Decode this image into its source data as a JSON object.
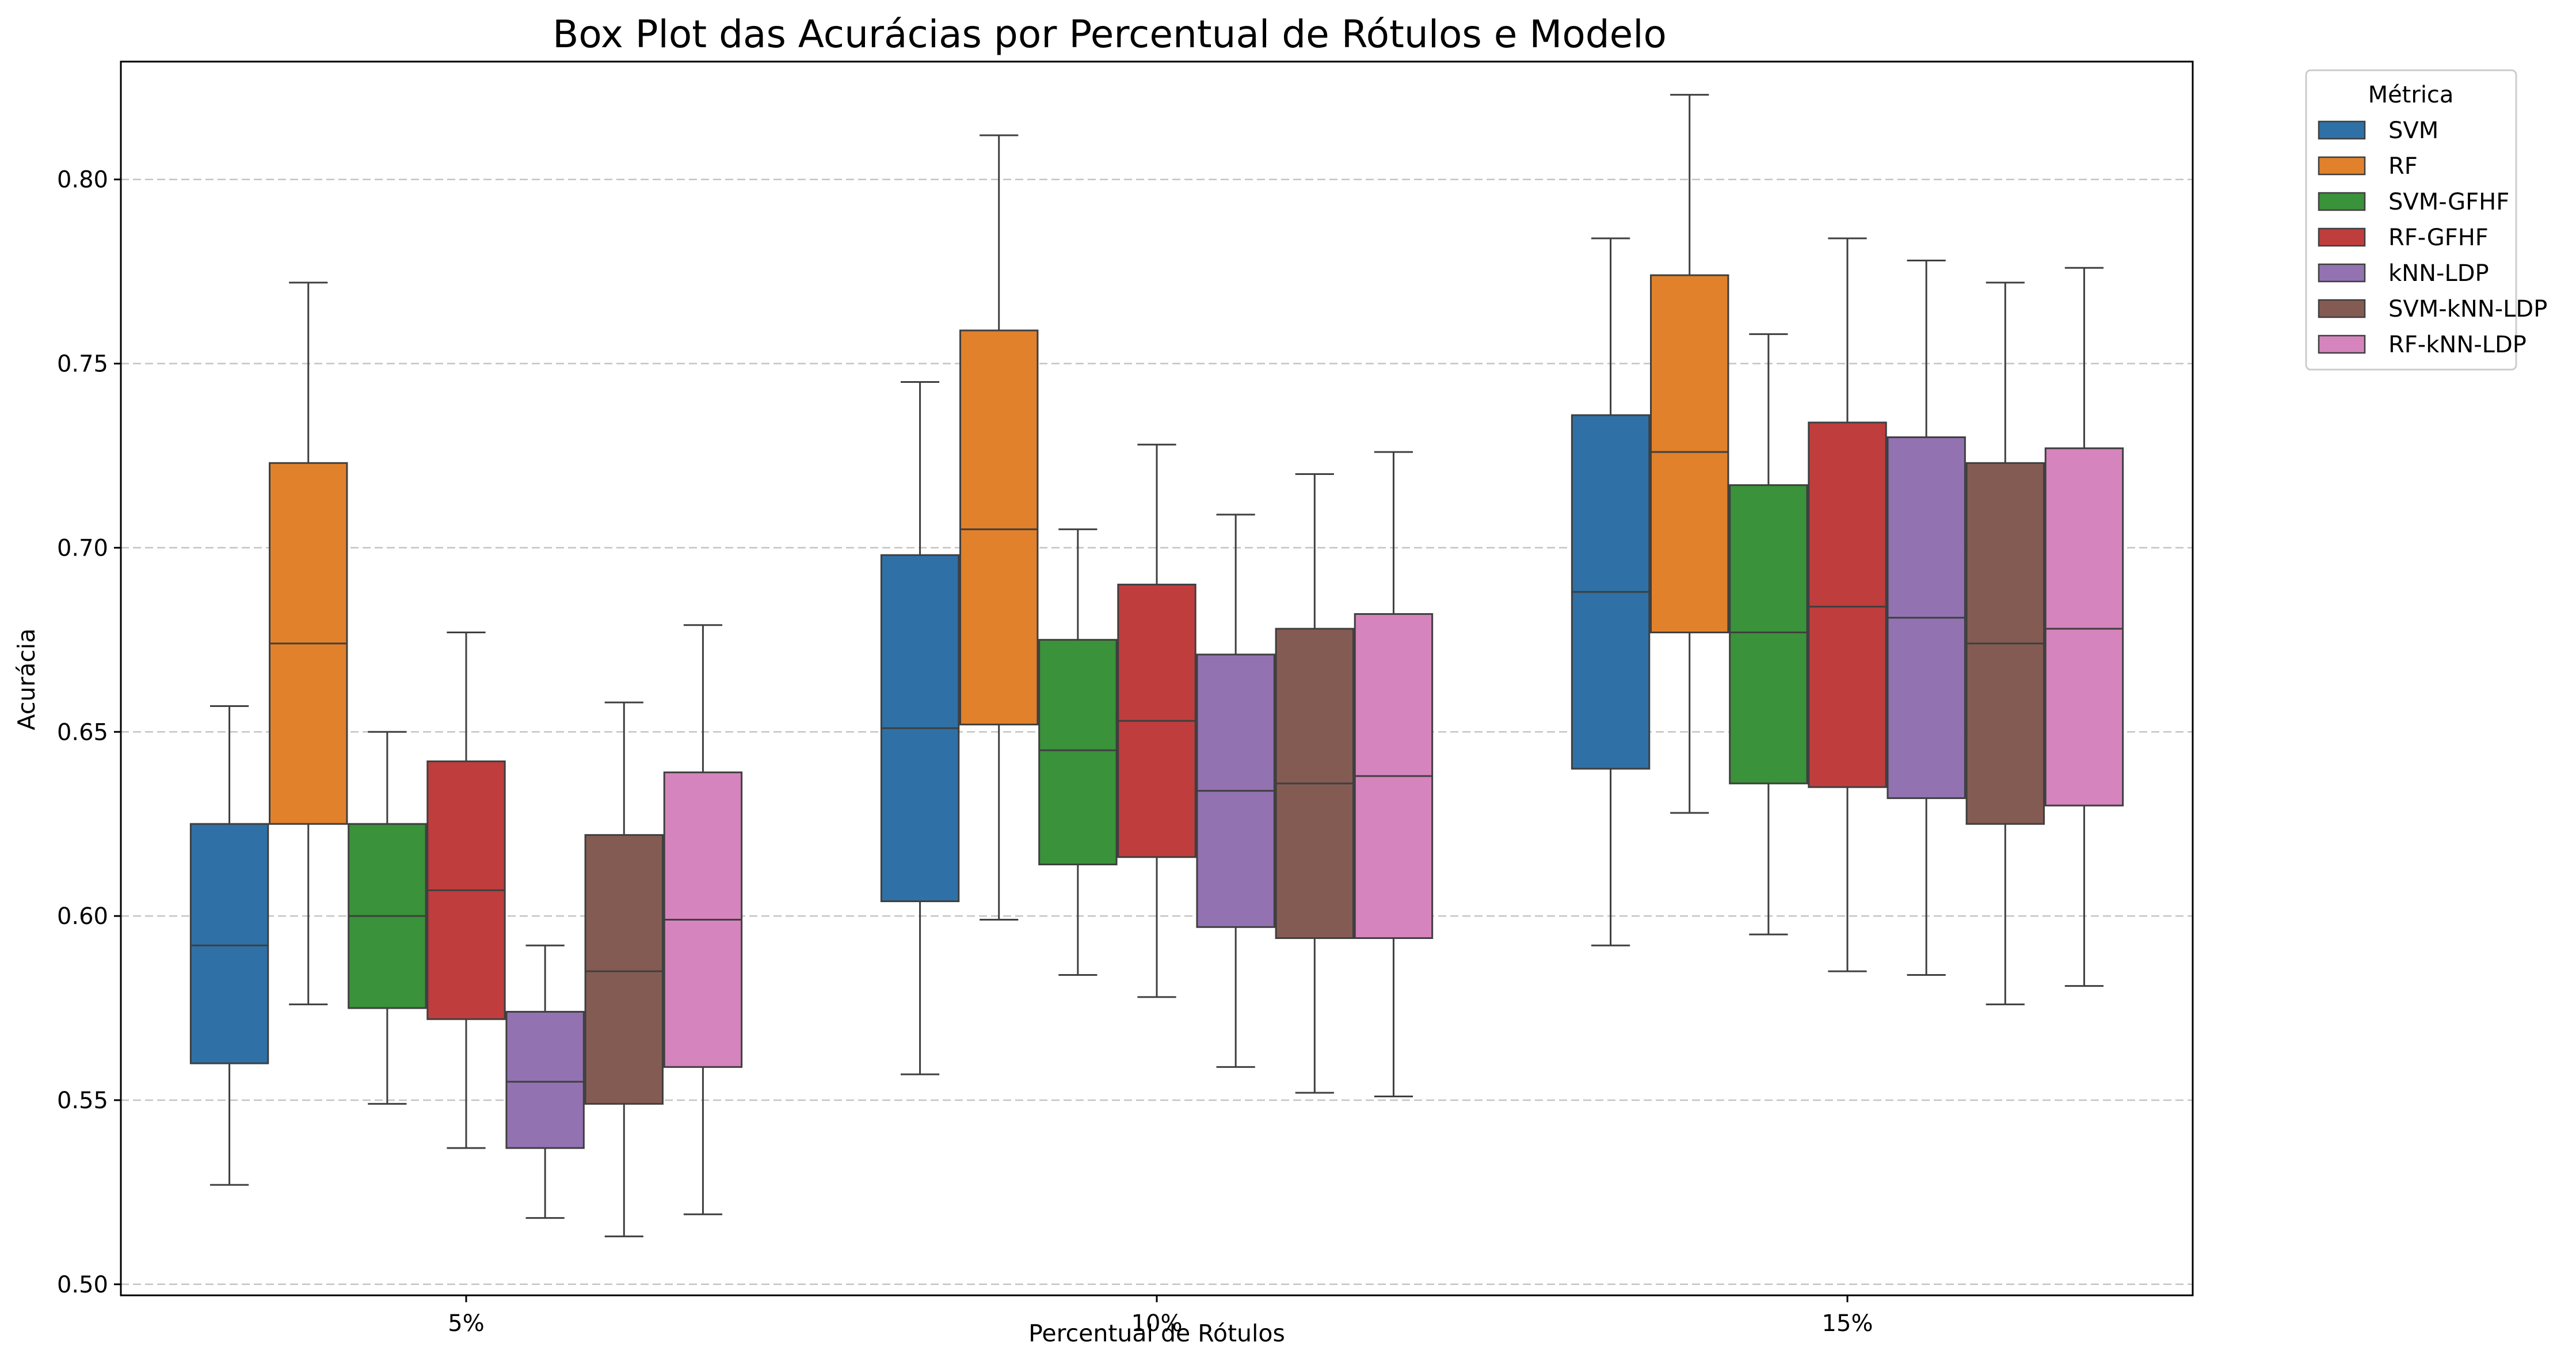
{
  "chart_data": {
    "type": "box",
    "title": "Box Plot das Acurácias por Percentual de Rótulos e Modelo",
    "xlabel": "Percentual de Rótulos",
    "ylabel": "Acurácia",
    "ylim": [
      0.497,
      0.832
    ],
    "yticks": [
      "0.50",
      "0.55",
      "0.60",
      "0.65",
      "0.70",
      "0.75",
      "0.80"
    ],
    "grid": "y, dashed",
    "categories": [
      "5%",
      "10%",
      "15%"
    ],
    "legend": {
      "title": "Métrica",
      "placement": "outside top-right"
    },
    "series": [
      {
        "name": "SVM",
        "color": "#2f71a6",
        "boxes": [
          {
            "min": 0.527,
            "q1": 0.56,
            "median": 0.592,
            "q3": 0.625,
            "max": 0.657
          },
          {
            "min": 0.557,
            "q1": 0.604,
            "median": 0.651,
            "q3": 0.698,
            "max": 0.745
          },
          {
            "min": 0.592,
            "q1": 0.64,
            "median": 0.688,
            "q3": 0.736,
            "max": 0.784
          }
        ]
      },
      {
        "name": "RF",
        "color": "#e1812c",
        "boxes": [
          {
            "min": 0.576,
            "q1": 0.625,
            "median": 0.674,
            "q3": 0.723,
            "max": 0.772
          },
          {
            "min": 0.599,
            "q1": 0.652,
            "median": 0.705,
            "q3": 0.759,
            "max": 0.812
          },
          {
            "min": 0.628,
            "q1": 0.677,
            "median": 0.726,
            "q3": 0.774,
            "max": 0.823
          }
        ]
      },
      {
        "name": "SVM-GFHF",
        "color": "#3a923a",
        "boxes": [
          {
            "min": 0.549,
            "q1": 0.575,
            "median": 0.6,
            "q3": 0.625,
            "max": 0.65
          },
          {
            "min": 0.584,
            "q1": 0.614,
            "median": 0.645,
            "q3": 0.675,
            "max": 0.705
          },
          {
            "min": 0.595,
            "q1": 0.636,
            "median": 0.677,
            "q3": 0.717,
            "max": 0.758
          }
        ]
      },
      {
        "name": "RF-GFHF",
        "color": "#c03d3e",
        "boxes": [
          {
            "min": 0.537,
            "q1": 0.572,
            "median": 0.607,
            "q3": 0.642,
            "max": 0.677
          },
          {
            "min": 0.578,
            "q1": 0.616,
            "median": 0.653,
            "q3": 0.69,
            "max": 0.728
          },
          {
            "min": 0.585,
            "q1": 0.635,
            "median": 0.684,
            "q3": 0.734,
            "max": 0.784
          }
        ]
      },
      {
        "name": "kNN-LDP",
        "color": "#9372b2",
        "boxes": [
          {
            "min": 0.518,
            "q1": 0.537,
            "median": 0.555,
            "q3": 0.574,
            "max": 0.592
          },
          {
            "min": 0.559,
            "q1": 0.597,
            "median": 0.634,
            "q3": 0.671,
            "max": 0.709
          },
          {
            "min": 0.584,
            "q1": 0.632,
            "median": 0.681,
            "q3": 0.73,
            "max": 0.778
          }
        ]
      },
      {
        "name": "SVM-kNN-LDP",
        "color": "#845b53",
        "boxes": [
          {
            "min": 0.513,
            "q1": 0.549,
            "median": 0.585,
            "q3": 0.622,
            "max": 0.658
          },
          {
            "min": 0.552,
            "q1": 0.594,
            "median": 0.636,
            "q3": 0.678,
            "max": 0.72
          },
          {
            "min": 0.576,
            "q1": 0.625,
            "median": 0.674,
            "q3": 0.723,
            "max": 0.772
          }
        ]
      },
      {
        "name": "RF-kNN-LDP",
        "color": "#d684bd",
        "boxes": [
          {
            "min": 0.519,
            "q1": 0.559,
            "median": 0.599,
            "q3": 0.639,
            "max": 0.679
          },
          {
            "min": 0.551,
            "q1": 0.594,
            "median": 0.638,
            "q3": 0.682,
            "max": 0.726
          },
          {
            "min": 0.581,
            "q1": 0.63,
            "median": 0.678,
            "q3": 0.727,
            "max": 0.776
          }
        ]
      }
    ]
  }
}
